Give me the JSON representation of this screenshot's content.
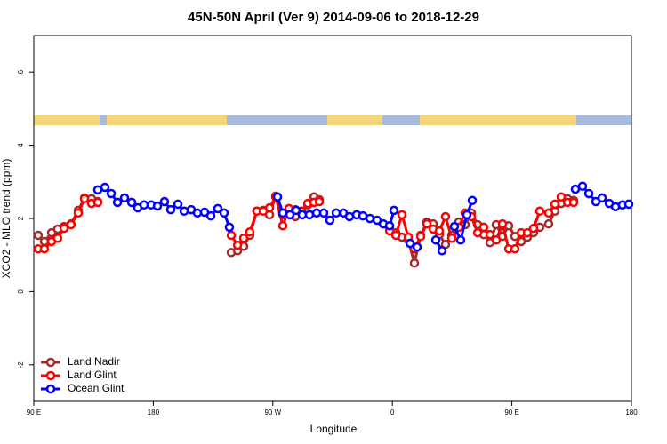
{
  "chart_data": {
    "type": "line",
    "title": "45N-50N April (Ver 9)   2014-09-06 to 2018-12-29",
    "xlabel": "Longitude",
    "ylabel": "XCO2 - MLO trend (ppm)",
    "xlim": [
      90,
      540
    ],
    "ylim": [
      -3,
      7
    ],
    "xticks": [
      {
        "value": 90,
        "label": "90 E"
      },
      180,
      {
        "value": 270,
        "label": "90 W"
      },
      {
        "value": 360,
        "label": "0"
      },
      {
        "value": 450,
        "label": "90 E"
      },
      {
        "value": 540,
        "label": "180"
      }
    ],
    "yticks": [
      -2,
      0,
      2,
      4,
      6
    ],
    "legend": "bottom-left",
    "series": [
      {
        "name": "Land Nadir",
        "color": "#a52a2a",
        "x": [
          93.3,
          98,
          103.4,
          108,
          112.8,
          118,
          123.5,
          128.2,
          133.5,
          138.2,
          null,
          238.7,
          243.4,
          248,
          252.7,
          258,
          262.8,
          267.5,
          272.2,
          277.5,
          282.2,
          287,
          291.7,
          296.3,
          301,
          305,
          null,
          357.9,
          362.6,
          367.2,
          372,
          376.6,
          381.3,
          386,
          390.7,
          395.4,
          400,
          404.7,
          410,
          414.8,
          419.5,
          424.2,
          428.8,
          433.5,
          438.2,
          442.9,
          447.6,
          452.3,
          457,
          461.7,
          466.3,
          471,
          477.7,
          482.4,
          487.1,
          491.8,
          496.5
        ],
        "values": [
          1.54,
          1.37,
          1.61,
          1.71,
          1.78,
          1.85,
          2.22,
          2.56,
          2.54,
          2.46,
          null,
          1.07,
          1.12,
          1.24,
          1.54,
          2.2,
          2.22,
          2.1,
          2.61,
          2.1,
          2.2,
          2.05,
          2.17,
          2.37,
          2.59,
          2.51,
          null,
          1.71,
          1.61,
          1.49,
          1.41,
          0.78,
          1.54,
          1.9,
          1.85,
          1.56,
          1.29,
          1.54,
          1.9,
          1.83,
          2.15,
          1.83,
          1.56,
          1.34,
          1.83,
          1.51,
          1.8,
          1.51,
          1.37,
          1.49,
          1.61,
          1.76,
          1.85,
          2.2,
          2.41,
          2.54,
          2.49
        ]
      },
      {
        "name": "Land Glint",
        "color": "#ff0000",
        "x": [
          93.3,
          98,
          103.4,
          108,
          112.8,
          118,
          123.5,
          128.2,
          133.5,
          138.2,
          null,
          238.7,
          243.4,
          248,
          252.7,
          258,
          262.8,
          267.5,
          272.2,
          277.5,
          282.2,
          287,
          291.7,
          296.3,
          301,
          305,
          null,
          357.9,
          362.6,
          367.2,
          372,
          376.6,
          381.3,
          386,
          390.7,
          395.4,
          400,
          404.7,
          410,
          414.8,
          419.5,
          424.2,
          428.8,
          433.5,
          438.2,
          442.9,
          447.6,
          452.3,
          457,
          461.7,
          466.3,
          471,
          477.7,
          482.4,
          487.1,
          491.8,
          496.5
        ],
        "values": [
          1.17,
          1.17,
          1.37,
          1.46,
          1.73,
          1.83,
          2.15,
          2.54,
          2.41,
          2.44,
          null,
          1.54,
          1.27,
          1.46,
          1.63,
          2.2,
          2.2,
          2.29,
          2.59,
          1.8,
          2.27,
          2.24,
          2.2,
          2.41,
          2.44,
          2.46,
          null,
          1.66,
          1.54,
          2.1,
          1.49,
          1.17,
          1.51,
          1.85,
          1.71,
          1.66,
          2.05,
          1.46,
          1.76,
          2.15,
          2.05,
          1.61,
          1.76,
          1.56,
          1.41,
          1.85,
          1.17,
          1.17,
          1.61,
          1.61,
          1.73,
          2.2,
          2.15,
          2.39,
          2.59,
          2.44,
          2.44
        ]
      },
      {
        "name": "Ocean Glint",
        "color": "#0000ff",
        "x": [
          138.2,
          143.6,
          148.3,
          153,
          158.3,
          163.7,
          168.3,
          173,
          178.4,
          183.1,
          188.4,
          193.1,
          198.5,
          203.2,
          208.5,
          213.2,
          218.6,
          223.3,
          228.6,
          233.3,
          237.3,
          null,
          273.5,
          277.5,
          282.9,
          287.5,
          292.2,
          297.6,
          303,
          308.3,
          313,
          317.7,
          323,
          327.7,
          333.1,
          337.8,
          343.1,
          348.5,
          353.2,
          357.9,
          361.2,
          null,
          373.3,
          378.6,
          null,
          392.7,
          397.4,
          null,
          406.7,
          411.4,
          416.1,
          420.2,
          null,
          497.8,
          503.2,
          507.9,
          513.2,
          517.9,
          523.3,
          528,
          533.3,
          538
        ],
        "values": [
          2.78,
          2.85,
          2.68,
          2.44,
          2.56,
          2.44,
          2.29,
          2.37,
          2.37,
          2.34,
          2.46,
          2.24,
          2.39,
          2.2,
          2.24,
          2.15,
          2.17,
          2.07,
          2.27,
          2.15,
          1.76,
          null,
          2.59,
          2.15,
          2.1,
          2.22,
          2.1,
          2.1,
          2.15,
          2.15,
          1.95,
          2.15,
          2.15,
          2.05,
          2.1,
          2.07,
          2,
          1.95,
          1.85,
          1.8,
          2.22,
          null,
          1.32,
          1.22,
          null,
          1.41,
          1.12,
          null,
          1.78,
          1.41,
          2.1,
          2.49,
          null,
          2.8,
          2.88,
          2.68,
          2.46,
          2.56,
          2.41,
          2.32,
          2.37,
          2.39
        ]
      }
    ]
  }
}
